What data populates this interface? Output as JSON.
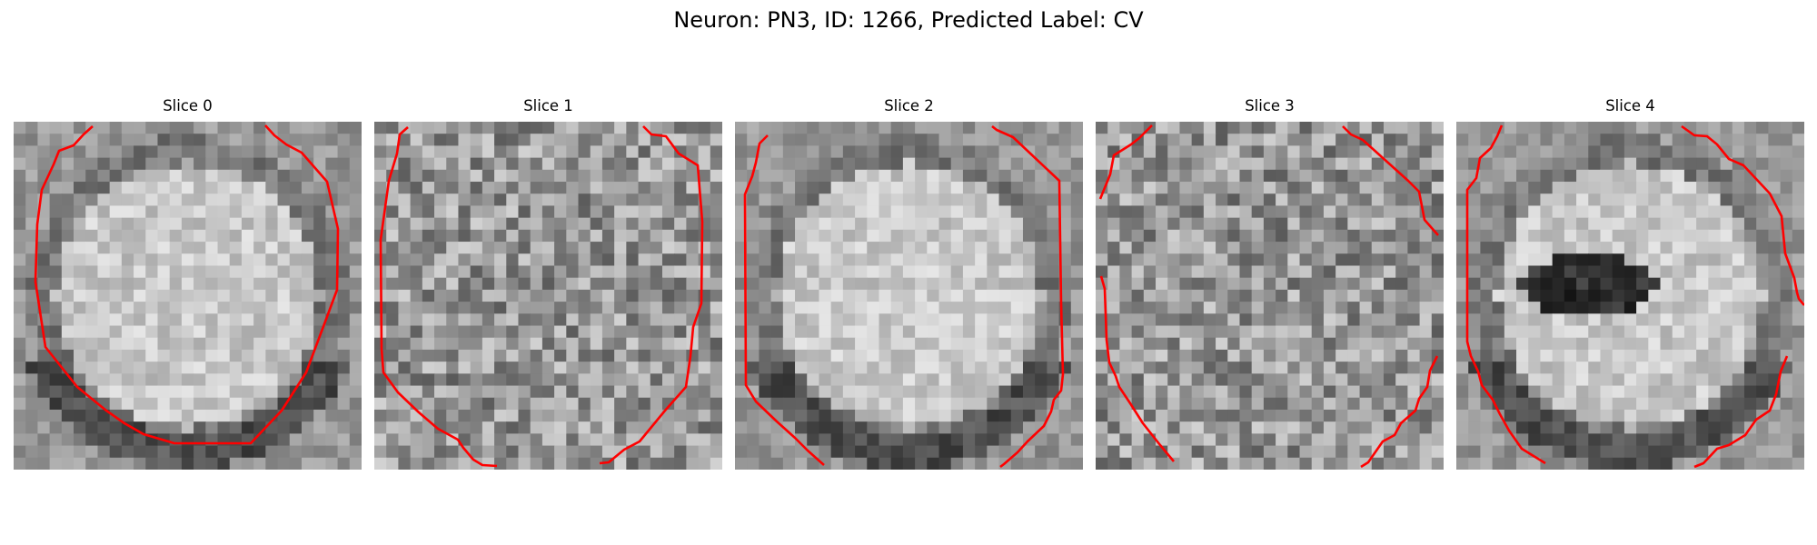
{
  "figure": {
    "title": "Neuron: PN3, ID: 1266, Predicted Label: CV",
    "contour_color": "#ff0000",
    "colormap": "gray",
    "slices": [
      {
        "title": "Slice 0",
        "bright_center": true,
        "dark_blob": false
      },
      {
        "title": "Slice 1",
        "bright_center": false,
        "dark_blob": false
      },
      {
        "title": "Slice 2",
        "bright_center": true,
        "dark_blob": false
      },
      {
        "title": "Slice 3",
        "bright_center": false,
        "dark_blob": false
      },
      {
        "title": "Slice 4",
        "bright_center": true,
        "dark_blob": true
      }
    ]
  }
}
